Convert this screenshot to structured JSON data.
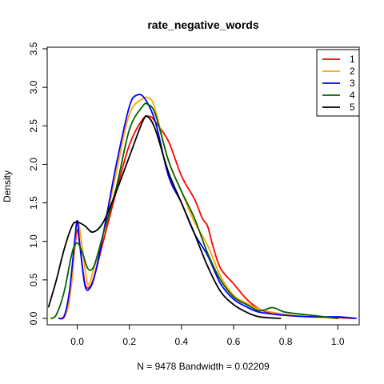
{
  "chart_data": {
    "type": "line",
    "title": "rate_negative_words",
    "xlabel": "N = 9478   Bandwidth = 0.02209",
    "ylabel": "Density",
    "xlim": [
      -0.1,
      1.07
    ],
    "ylim": [
      0,
      3.5
    ],
    "x_ticks": [
      "0.0",
      "0.2",
      "0.4",
      "0.6",
      "0.8",
      "1.0"
    ],
    "y_ticks": [
      "0.0",
      "0.5",
      "1.0",
      "1.5",
      "2.0",
      "2.5",
      "3.0",
      "3.5"
    ],
    "grid": false,
    "legend_position": "top-right",
    "series": [
      {
        "name": "1",
        "color": "#ff0000",
        "x": [
          -0.07,
          -0.05,
          -0.03,
          -0.01,
          0.0,
          0.01,
          0.03,
          0.05,
          0.07,
          0.1,
          0.15,
          0.2,
          0.25,
          0.28,
          0.3,
          0.35,
          0.4,
          0.45,
          0.48,
          0.5,
          0.52,
          0.55,
          0.6,
          0.65,
          0.7,
          0.75,
          0.8,
          0.9,
          1.0,
          1.06
        ],
        "y": [
          0.0,
          0.02,
          0.25,
          0.9,
          1.15,
          0.95,
          0.45,
          0.42,
          0.6,
          1.0,
          1.65,
          2.25,
          2.58,
          2.62,
          2.55,
          2.3,
          1.85,
          1.55,
          1.3,
          1.2,
          0.95,
          0.65,
          0.45,
          0.25,
          0.12,
          0.06,
          0.04,
          0.02,
          0.01,
          0.0
        ]
      },
      {
        "name": "2",
        "color": "#ffa500",
        "x": [
          -0.06,
          -0.04,
          -0.02,
          0.0,
          0.02,
          0.04,
          0.06,
          0.08,
          0.1,
          0.15,
          0.2,
          0.25,
          0.28,
          0.3,
          0.35,
          0.4,
          0.45,
          0.5,
          0.55,
          0.6,
          0.65,
          0.7,
          0.8,
          0.9,
          1.0
        ],
        "y": [
          0.0,
          0.1,
          0.5,
          1.25,
          0.9,
          0.45,
          0.6,
          0.85,
          1.1,
          1.9,
          2.65,
          2.85,
          2.85,
          2.7,
          2.05,
          1.65,
          1.25,
          0.95,
          0.55,
          0.3,
          0.2,
          0.12,
          0.05,
          0.02,
          0.0
        ]
      },
      {
        "name": "3",
        "color": "#0000ff",
        "x": [
          -0.07,
          -0.05,
          -0.03,
          -0.01,
          0.0,
          0.01,
          0.03,
          0.05,
          0.07,
          0.1,
          0.15,
          0.2,
          0.23,
          0.26,
          0.3,
          0.35,
          0.4,
          0.45,
          0.5,
          0.55,
          0.6,
          0.65,
          0.7,
          0.8,
          0.9,
          1.0,
          1.07
        ],
        "y": [
          0.0,
          0.03,
          0.35,
          1.0,
          1.27,
          0.95,
          0.42,
          0.4,
          0.6,
          1.1,
          2.0,
          2.75,
          2.9,
          2.85,
          2.55,
          1.85,
          1.5,
          1.1,
          0.82,
          0.45,
          0.25,
          0.15,
          0.08,
          0.04,
          0.02,
          0.02,
          0.0
        ]
      },
      {
        "name": "4",
        "color": "#006400",
        "x": [
          -0.1,
          -0.08,
          -0.05,
          -0.02,
          0.0,
          0.02,
          0.04,
          0.06,
          0.08,
          0.1,
          0.15,
          0.2,
          0.25,
          0.27,
          0.3,
          0.35,
          0.4,
          0.45,
          0.5,
          0.55,
          0.6,
          0.65,
          0.7,
          0.75,
          0.8,
          0.9,
          1.0
        ],
        "y": [
          0.0,
          0.05,
          0.35,
          0.85,
          0.98,
          0.85,
          0.65,
          0.65,
          0.85,
          1.1,
          1.7,
          2.45,
          2.75,
          2.78,
          2.65,
          2.05,
          1.65,
          1.3,
          0.85,
          0.5,
          0.28,
          0.18,
          0.1,
          0.14,
          0.08,
          0.04,
          0.0
        ]
      },
      {
        "name": "5",
        "color": "#000000",
        "x": [
          -0.11,
          -0.08,
          -0.05,
          -0.02,
          0.0,
          0.03,
          0.06,
          0.1,
          0.15,
          0.2,
          0.25,
          0.27,
          0.3,
          0.35,
          0.4,
          0.45,
          0.5,
          0.55,
          0.6,
          0.65,
          0.7,
          0.78
        ],
        "y": [
          0.15,
          0.5,
          0.9,
          1.2,
          1.25,
          1.2,
          1.12,
          1.25,
          1.65,
          2.1,
          2.55,
          2.62,
          2.45,
          1.9,
          1.5,
          1.1,
          0.68,
          0.35,
          0.18,
          0.08,
          0.02,
          0.0
        ]
      }
    ]
  }
}
